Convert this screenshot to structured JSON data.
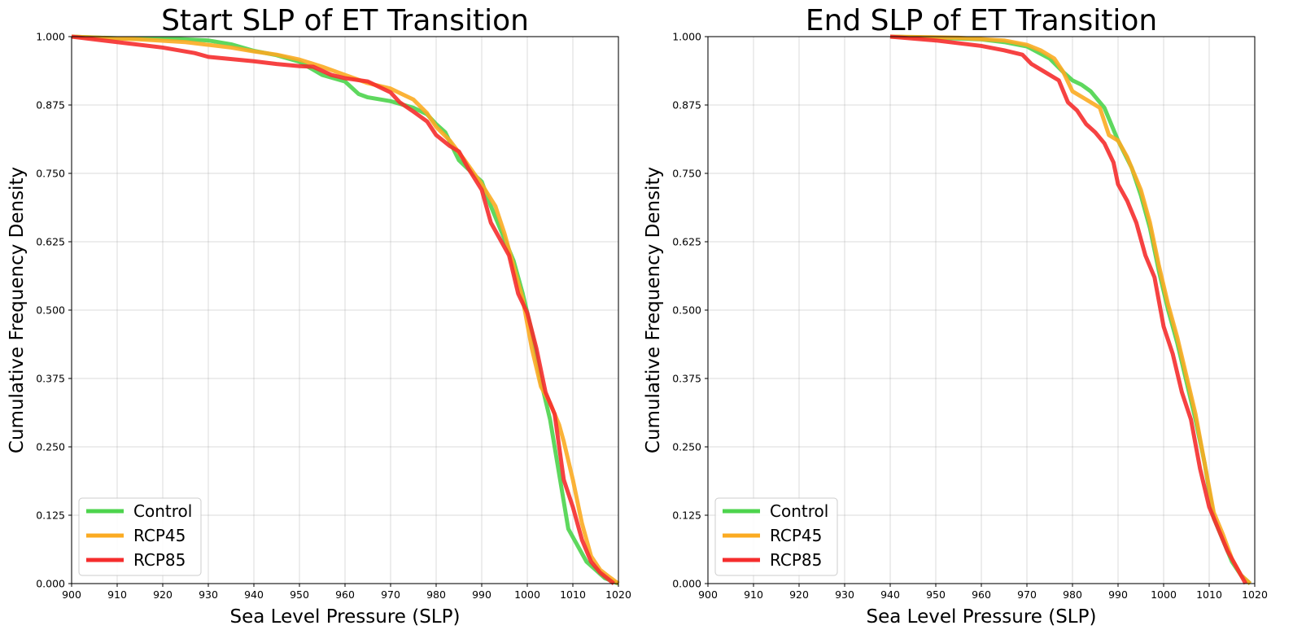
{
  "chart_data": [
    {
      "type": "line",
      "title": "Start SLP of ET Transition",
      "xlabel": "Sea Level Pressure (SLP)",
      "ylabel": "Cumulative Frequency Density",
      "xlim": [
        900,
        1020
      ],
      "ylim": [
        0,
        1
      ],
      "x_ticks": [
        "900",
        "910",
        "920",
        "930",
        "940",
        "950",
        "960",
        "970",
        "980",
        "990",
        "1000",
        "1010",
        "1020"
      ],
      "y_ticks": [
        "0.000",
        "0.125",
        "0.250",
        "0.375",
        "0.500",
        "0.625",
        "0.750",
        "0.875",
        "1.000"
      ],
      "grid": true,
      "legend_position": "lower-left",
      "series": [
        {
          "name": "Control",
          "color": "#4dd44d",
          "points": [
            [
              900,
              1.0
            ],
            [
              910,
              0.997
            ],
            [
              920,
              0.997
            ],
            [
              930,
              0.993
            ],
            [
              935,
              0.986
            ],
            [
              940,
              0.974
            ],
            [
              945,
              0.966
            ],
            [
              950,
              0.954
            ],
            [
              955,
              0.93
            ],
            [
              960,
              0.918
            ],
            [
              963,
              0.895
            ],
            [
              965,
              0.889
            ],
            [
              970,
              0.882
            ],
            [
              975,
              0.87
            ],
            [
              978,
              0.858
            ],
            [
              980,
              0.84
            ],
            [
              982,
              0.825
            ],
            [
              985,
              0.774
            ],
            [
              988,
              0.75
            ],
            [
              990,
              0.735
            ],
            [
              992,
              0.69
            ],
            [
              995,
              0.63
            ],
            [
              997,
              0.59
            ],
            [
              999,
              0.53
            ],
            [
              1001,
              0.46
            ],
            [
              1003,
              0.37
            ],
            [
              1005,
              0.3
            ],
            [
              1007,
              0.2
            ],
            [
              1009,
              0.1
            ],
            [
              1011,
              0.07
            ],
            [
              1013,
              0.04
            ],
            [
              1015,
              0.025
            ],
            [
              1017,
              0.01
            ],
            [
              1020,
              0.0
            ]
          ]
        },
        {
          "name": "RCP45",
          "color": "#fbab22",
          "points": [
            [
              900,
              1.0
            ],
            [
              915,
              0.995
            ],
            [
              925,
              0.99
            ],
            [
              930,
              0.985
            ],
            [
              935,
              0.98
            ],
            [
              940,
              0.973
            ],
            [
              945,
              0.967
            ],
            [
              950,
              0.958
            ],
            [
              955,
              0.945
            ],
            [
              960,
              0.93
            ],
            [
              965,
              0.915
            ],
            [
              970,
              0.905
            ],
            [
              975,
              0.885
            ],
            [
              978,
              0.86
            ],
            [
              980,
              0.835
            ],
            [
              983,
              0.81
            ],
            [
              986,
              0.777
            ],
            [
              990,
              0.73
            ],
            [
              993,
              0.69
            ],
            [
              995,
              0.64
            ],
            [
              997,
              0.58
            ],
            [
              999,
              0.52
            ],
            [
              1001,
              0.43
            ],
            [
              1003,
              0.36
            ],
            [
              1005,
              0.33
            ],
            [
              1007,
              0.29
            ],
            [
              1008,
              0.26
            ],
            [
              1010,
              0.19
            ],
            [
              1012,
              0.11
            ],
            [
              1014,
              0.05
            ],
            [
              1016,
              0.025
            ],
            [
              1018,
              0.012
            ],
            [
              1020,
              0.0
            ]
          ]
        },
        {
          "name": "RCP85",
          "color": "#f52d2d",
          "points": [
            [
              900,
              1.0
            ],
            [
              910,
              0.99
            ],
            [
              920,
              0.98
            ],
            [
              927,
              0.97
            ],
            [
              930,
              0.963
            ],
            [
              940,
              0.955
            ],
            [
              945,
              0.95
            ],
            [
              950,
              0.946
            ],
            [
              953,
              0.945
            ],
            [
              957,
              0.93
            ],
            [
              960,
              0.924
            ],
            [
              965,
              0.918
            ],
            [
              970,
              0.898
            ],
            [
              972,
              0.88
            ],
            [
              975,
              0.863
            ],
            [
              978,
              0.845
            ],
            [
              980,
              0.82
            ],
            [
              983,
              0.8
            ],
            [
              985,
              0.79
            ],
            [
              987,
              0.76
            ],
            [
              990,
              0.72
            ],
            [
              992,
              0.66
            ],
            [
              994,
              0.63
            ],
            [
              996,
              0.6
            ],
            [
              998,
              0.53
            ],
            [
              1000,
              0.495
            ],
            [
              1002,
              0.43
            ],
            [
              1004,
              0.35
            ],
            [
              1006,
              0.31
            ],
            [
              1008,
              0.19
            ],
            [
              1010,
              0.14
            ],
            [
              1012,
              0.08
            ],
            [
              1014,
              0.04
            ],
            [
              1016,
              0.02
            ],
            [
              1019,
              0.0
            ]
          ]
        }
      ]
    },
    {
      "type": "line",
      "title": "End SLP of ET Transition",
      "xlabel": "Sea Level Pressure (SLP)",
      "ylabel": "Cumulative Frequency Density",
      "xlim": [
        900,
        1020
      ],
      "ylim": [
        0,
        1
      ],
      "x_ticks": [
        "900",
        "910",
        "920",
        "930",
        "940",
        "950",
        "960",
        "970",
        "980",
        "990",
        "1000",
        "1010",
        "1020"
      ],
      "y_ticks": [
        "0.000",
        "0.125",
        "0.250",
        "0.375",
        "0.500",
        "0.625",
        "0.750",
        "0.875",
        "1.000"
      ],
      "grid": true,
      "legend_position": "lower-left",
      "series": [
        {
          "name": "Control",
          "color": "#4dd44d",
          "points": [
            [
              940,
              1.0
            ],
            [
              950,
              0.998
            ],
            [
              960,
              0.995
            ],
            [
              965,
              0.99
            ],
            [
              970,
              0.982
            ],
            [
              975,
              0.96
            ],
            [
              978,
              0.935
            ],
            [
              980,
              0.92
            ],
            [
              982,
              0.912
            ],
            [
              984,
              0.9
            ],
            [
              987,
              0.87
            ],
            [
              990,
              0.81
            ],
            [
              993,
              0.76
            ],
            [
              995,
              0.71
            ],
            [
              997,
              0.65
            ],
            [
              999,
              0.57
            ],
            [
              1001,
              0.5
            ],
            [
              1003,
              0.44
            ],
            [
              1005,
              0.37
            ],
            [
              1007,
              0.3
            ],
            [
              1009,
              0.22
            ],
            [
              1011,
              0.12
            ],
            [
              1013,
              0.08
            ],
            [
              1015,
              0.04
            ],
            [
              1017,
              0.015
            ],
            [
              1019,
              0.0
            ]
          ]
        },
        {
          "name": "RCP45",
          "color": "#fbab22",
          "points": [
            [
              940,
              1.0
            ],
            [
              955,
              0.998
            ],
            [
              965,
              0.993
            ],
            [
              970,
              0.985
            ],
            [
              973,
              0.975
            ],
            [
              976,
              0.96
            ],
            [
              978,
              0.935
            ],
            [
              980,
              0.9
            ],
            [
              983,
              0.885
            ],
            [
              986,
              0.87
            ],
            [
              988,
              0.82
            ],
            [
              990,
              0.81
            ],
            [
              992,
              0.78
            ],
            [
              995,
              0.72
            ],
            [
              997,
              0.66
            ],
            [
              999,
              0.58
            ],
            [
              1001,
              0.51
            ],
            [
              1003,
              0.45
            ],
            [
              1005,
              0.38
            ],
            [
              1007,
              0.31
            ],
            [
              1009,
              0.22
            ],
            [
              1011,
              0.13
            ],
            [
              1013,
              0.09
            ],
            [
              1015,
              0.045
            ],
            [
              1017,
              0.015
            ],
            [
              1019,
              0.0
            ]
          ]
        },
        {
          "name": "RCP85",
          "color": "#f52d2d",
          "points": [
            [
              940,
              1.0
            ],
            [
              950,
              0.993
            ],
            [
              960,
              0.983
            ],
            [
              965,
              0.975
            ],
            [
              969,
              0.967
            ],
            [
              971,
              0.95
            ],
            [
              974,
              0.935
            ],
            [
              977,
              0.92
            ],
            [
              979,
              0.88
            ],
            [
              981,
              0.865
            ],
            [
              983,
              0.84
            ],
            [
              985,
              0.825
            ],
            [
              987,
              0.805
            ],
            [
              989,
              0.77
            ],
            [
              990,
              0.73
            ],
            [
              992,
              0.7
            ],
            [
              994,
              0.66
            ],
            [
              996,
              0.6
            ],
            [
              998,
              0.56
            ],
            [
              1000,
              0.47
            ],
            [
              1002,
              0.42
            ],
            [
              1004,
              0.35
            ],
            [
              1006,
              0.3
            ],
            [
              1008,
              0.21
            ],
            [
              1010,
              0.14
            ],
            [
              1012,
              0.1
            ],
            [
              1014,
              0.06
            ],
            [
              1016,
              0.03
            ],
            [
              1018,
              0.0
            ]
          ]
        }
      ]
    }
  ]
}
